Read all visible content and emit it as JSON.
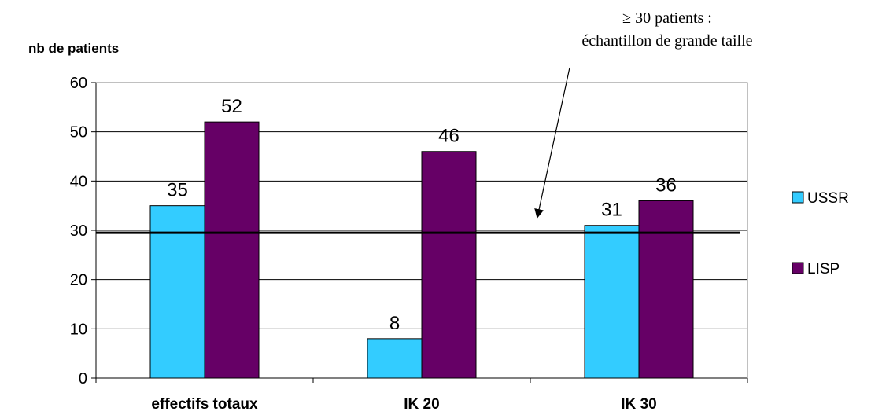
{
  "chart_data": {
    "type": "bar",
    "ylabel": "nb de patients",
    "xlabel": "",
    "ylim": [
      0,
      60
    ],
    "yticks": [
      0,
      10,
      20,
      30,
      40,
      50,
      60
    ],
    "categories": [
      "effectifs totaux",
      "IK 20",
      "IK 30"
    ],
    "series": [
      {
        "name": "USSR",
        "color": "#33CCFF",
        "values": [
          35,
          8,
          31
        ]
      },
      {
        "name": "LISP",
        "color": "#660066",
        "values": [
          52,
          46,
          36
        ]
      }
    ],
    "grid": true,
    "legend_position": "right",
    "threshold": {
      "value": 29.5,
      "label_line1": "≥ 30 patients :",
      "label_line2": "échantillon de grande taille"
    }
  }
}
